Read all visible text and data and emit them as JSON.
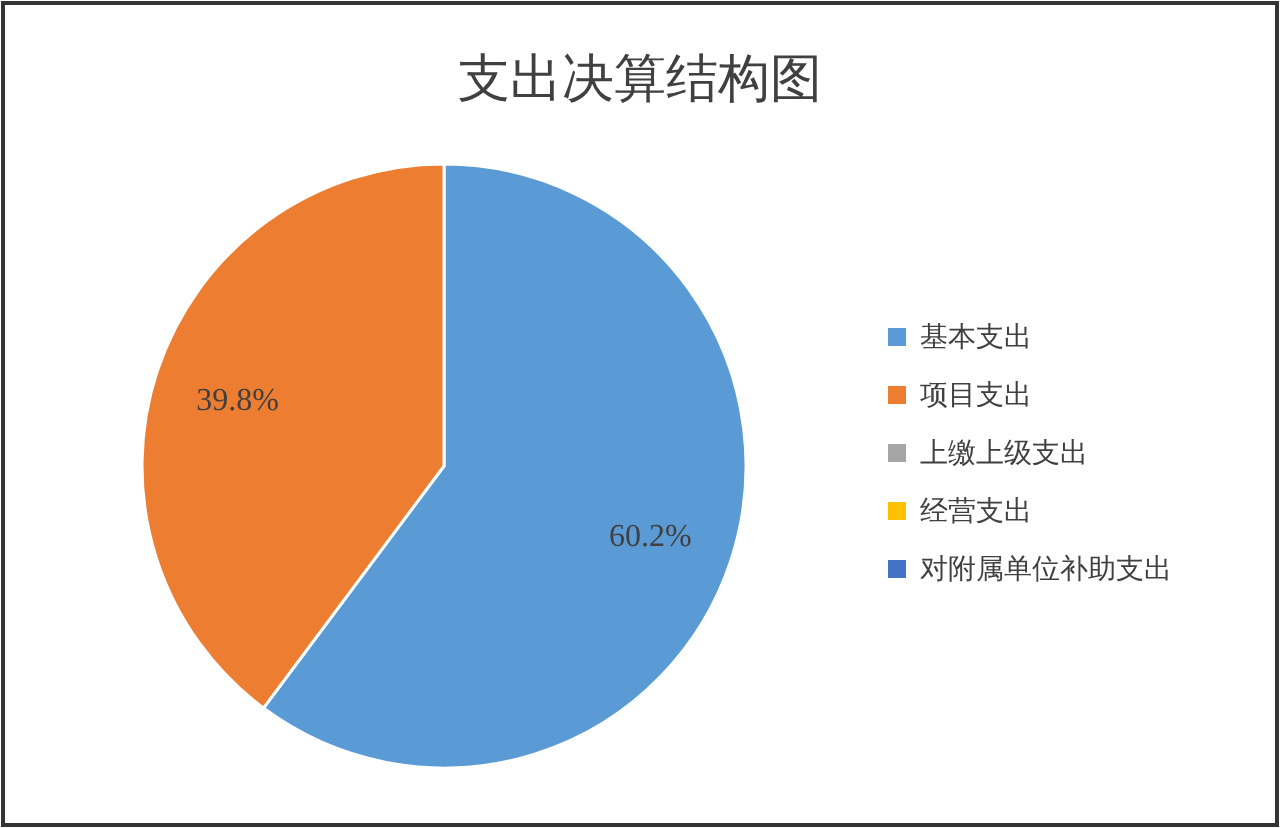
{
  "chart_data": {
    "type": "pie",
    "title": "支出决算结构图",
    "categories": [
      "基本支出",
      "项目支出",
      "上缴上级支出",
      "经营支出",
      "对附属单位补助支出"
    ],
    "values": [
      60.2,
      39.8,
      0,
      0,
      0
    ],
    "colors": [
      "#5b9bd5",
      "#ed7d31",
      "#a5a5a5",
      "#ffc000",
      "#4472c4"
    ],
    "value_labels": [
      "60.2%",
      "39.8%",
      null,
      null,
      null
    ],
    "legend": "right"
  }
}
